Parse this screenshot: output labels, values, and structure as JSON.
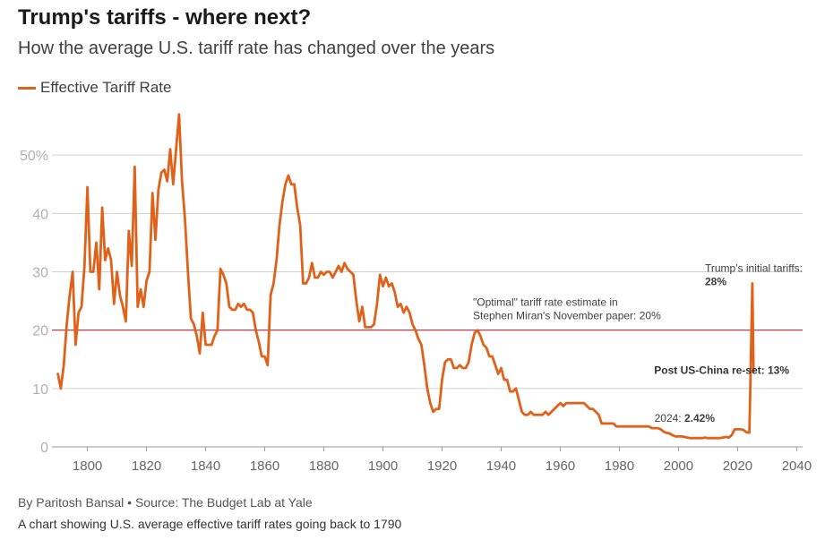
{
  "title": "Trump's tariffs - where next?",
  "subtitle": "How the average U.S. tariff rate has changed over the years",
  "byline": "By Paritosh Bansal • Source: The Budget Lab at Yale",
  "caption": "A chart showing U.S. average effective tariff rates going back to 1790",
  "colors": {
    "series": "#e0621a",
    "reference_line": "#c8102e",
    "grid": "#d0d0d0",
    "axis_text": "#666666"
  },
  "chart_data": {
    "type": "line",
    "title": "Trump's tariffs - where next?",
    "subtitle": "How the average U.S. tariff rate has changed over the years",
    "xlabel": "",
    "ylabel": "",
    "xlim": [
      1788,
      2042
    ],
    "ylim": [
      0,
      60
    ],
    "x_ticks": [
      1800,
      1820,
      1840,
      1860,
      1880,
      1900,
      1920,
      1940,
      1960,
      1980,
      2000,
      2020,
      2040
    ],
    "y_ticks": [
      {
        "value": 0,
        "label": "0"
      },
      {
        "value": 10,
        "label": "10"
      },
      {
        "value": 20,
        "label": "20"
      },
      {
        "value": 30,
        "label": "30"
      },
      {
        "value": 40,
        "label": "40"
      },
      {
        "value": 50,
        "label": "50%"
      }
    ],
    "grid": true,
    "legend_position": "top-left",
    "reference_lines": [
      {
        "y": 20,
        "label_lines": [
          "\"Optimal\" tariff rate estimate in",
          "Stephen Miran's November paper: 20%"
        ]
      }
    ],
    "annotations": [
      {
        "x": 2025,
        "y": 28,
        "label_lines": [
          "Trump's initial tariffs:",
          "28%"
        ],
        "bold_line": 1
      },
      {
        "x": 2025,
        "y": 13,
        "label_lines": [
          "Post US-China re-set: 13%"
        ],
        "bold_line": 0
      },
      {
        "x": 2024,
        "y": 2.42,
        "label_prefix": "2024: ",
        "label_value": "2.42%"
      }
    ],
    "series": [
      {
        "name": "Effective Tariff Rate",
        "color": "#e0621a",
        "points": [
          [
            1790,
            12.5
          ],
          [
            1791,
            10
          ],
          [
            1792,
            14
          ],
          [
            1793,
            21
          ],
          [
            1794,
            26
          ],
          [
            1795,
            30
          ],
          [
            1796,
            17.5
          ],
          [
            1797,
            23
          ],
          [
            1798,
            24
          ],
          [
            1799,
            31
          ],
          [
            1800,
            44.5
          ],
          [
            1801,
            30
          ],
          [
            1802,
            30
          ],
          [
            1803,
            35
          ],
          [
            1804,
            27
          ],
          [
            1805,
            41
          ],
          [
            1806,
            32
          ],
          [
            1807,
            34
          ],
          [
            1808,
            32
          ],
          [
            1809,
            24.5
          ],
          [
            1810,
            30
          ],
          [
            1811,
            26
          ],
          [
            1812,
            24
          ],
          [
            1813,
            21.5
          ],
          [
            1814,
            37
          ],
          [
            1815,
            31
          ],
          [
            1816,
            48
          ],
          [
            1817,
            24
          ],
          [
            1818,
            27
          ],
          [
            1819,
            24
          ],
          [
            1820,
            28.5
          ],
          [
            1821,
            30
          ],
          [
            1822,
            43.5
          ],
          [
            1823,
            35.5
          ],
          [
            1824,
            44
          ],
          [
            1825,
            47
          ],
          [
            1826,
            47.5
          ],
          [
            1827,
            45.5
          ],
          [
            1828,
            51
          ],
          [
            1829,
            45
          ],
          [
            1830,
            51
          ],
          [
            1831,
            57
          ],
          [
            1832,
            45.5
          ],
          [
            1833,
            39
          ],
          [
            1834,
            30
          ],
          [
            1835,
            22
          ],
          [
            1836,
            21
          ],
          [
            1837,
            19
          ],
          [
            1838,
            16
          ],
          [
            1839,
            23
          ],
          [
            1840,
            17.5
          ],
          [
            1841,
            17.5
          ],
          [
            1842,
            17.5
          ],
          [
            1843,
            19
          ],
          [
            1844,
            20
          ],
          [
            1845,
            30.5
          ],
          [
            1846,
            29.5
          ],
          [
            1847,
            28
          ],
          [
            1848,
            24
          ],
          [
            1849,
            23.5
          ],
          [
            1850,
            23.5
          ],
          [
            1851,
            24.5
          ],
          [
            1852,
            24
          ],
          [
            1853,
            24.5
          ],
          [
            1854,
            23.5
          ],
          [
            1855,
            23.5
          ],
          [
            1856,
            23
          ],
          [
            1857,
            20
          ],
          [
            1858,
            18
          ],
          [
            1859,
            15.5
          ],
          [
            1860,
            15.5
          ],
          [
            1861,
            14
          ],
          [
            1862,
            26
          ],
          [
            1863,
            28
          ],
          [
            1864,
            32
          ],
          [
            1865,
            38
          ],
          [
            1866,
            42
          ],
          [
            1867,
            45
          ],
          [
            1868,
            46.5
          ],
          [
            1869,
            45
          ],
          [
            1870,
            45
          ],
          [
            1871,
            41
          ],
          [
            1872,
            38
          ],
          [
            1873,
            28
          ],
          [
            1874,
            28
          ],
          [
            1875,
            29
          ],
          [
            1876,
            31.5
          ],
          [
            1877,
            29
          ],
          [
            1878,
            29
          ],
          [
            1879,
            30
          ],
          [
            1880,
            29.5
          ],
          [
            1881,
            30
          ],
          [
            1882,
            30
          ],
          [
            1883,
            29
          ],
          [
            1884,
            30
          ],
          [
            1885,
            31
          ],
          [
            1886,
            30
          ],
          [
            1887,
            31.5
          ],
          [
            1888,
            30.5
          ],
          [
            1889,
            30
          ],
          [
            1890,
            29.5
          ],
          [
            1891,
            25
          ],
          [
            1892,
            21.5
          ],
          [
            1893,
            24
          ],
          [
            1894,
            20.5
          ],
          [
            1895,
            20.5
          ],
          [
            1896,
            20.5
          ],
          [
            1897,
            21
          ],
          [
            1898,
            24.5
          ],
          [
            1899,
            29.5
          ],
          [
            1900,
            27.5
          ],
          [
            1901,
            29
          ],
          [
            1902,
            27.5
          ],
          [
            1903,
            28
          ],
          [
            1904,
            26.5
          ],
          [
            1905,
            24
          ],
          [
            1906,
            24.5
          ],
          [
            1907,
            23
          ],
          [
            1908,
            24
          ],
          [
            1909,
            23
          ],
          [
            1910,
            21
          ],
          [
            1911,
            20
          ],
          [
            1912,
            18.5
          ],
          [
            1913,
            17.5
          ],
          [
            1914,
            14
          ],
          [
            1915,
            10
          ],
          [
            1916,
            7.5
          ],
          [
            1917,
            6
          ],
          [
            1918,
            6.5
          ],
          [
            1919,
            6.5
          ],
          [
            1920,
            11.5
          ],
          [
            1921,
            14.5
          ],
          [
            1922,
            15
          ],
          [
            1923,
            15
          ],
          [
            1924,
            13.5
          ],
          [
            1925,
            13.5
          ],
          [
            1926,
            14
          ],
          [
            1927,
            13.5
          ],
          [
            1928,
            13.5
          ],
          [
            1929,
            14.5
          ],
          [
            1930,
            17.5
          ],
          [
            1931,
            19.5
          ],
          [
            1932,
            20
          ],
          [
            1933,
            19
          ],
          [
            1934,
            17.5
          ],
          [
            1935,
            17
          ],
          [
            1936,
            15.5
          ],
          [
            1937,
            15.5
          ],
          [
            1938,
            14
          ],
          [
            1939,
            12.5
          ],
          [
            1940,
            13.5
          ],
          [
            1941,
            11.5
          ],
          [
            1942,
            11.5
          ],
          [
            1943,
            9.5
          ],
          [
            1944,
            9.5
          ],
          [
            1945,
            10
          ],
          [
            1946,
            8
          ],
          [
            1947,
            6
          ],
          [
            1948,
            5.5
          ],
          [
            1949,
            5.5
          ],
          [
            1950,
            6
          ],
          [
            1951,
            5.5
          ],
          [
            1952,
            5.5
          ],
          [
            1953,
            5.5
          ],
          [
            1954,
            5.5
          ],
          [
            1955,
            6
          ],
          [
            1956,
            5.5
          ],
          [
            1957,
            6
          ],
          [
            1958,
            6.5
          ],
          [
            1959,
            7
          ],
          [
            1960,
            7.5
          ],
          [
            1961,
            7
          ],
          [
            1962,
            7.5
          ],
          [
            1963,
            7.5
          ],
          [
            1964,
            7.5
          ],
          [
            1965,
            7.5
          ],
          [
            1966,
            7.5
          ],
          [
            1967,
            7.5
          ],
          [
            1968,
            7.5
          ],
          [
            1969,
            7
          ],
          [
            1970,
            6.5
          ],
          [
            1971,
            6.5
          ],
          [
            1972,
            6
          ],
          [
            1973,
            5.5
          ],
          [
            1974,
            4
          ],
          [
            1975,
            4
          ],
          [
            1976,
            4
          ],
          [
            1977,
            4
          ],
          [
            1978,
            4
          ],
          [
            1979,
            3.5
          ],
          [
            1980,
            3.5
          ],
          [
            1981,
            3.5
          ],
          [
            1982,
            3.5
          ],
          [
            1983,
            3.5
          ],
          [
            1984,
            3.5
          ],
          [
            1985,
            3.5
          ],
          [
            1986,
            3.5
          ],
          [
            1987,
            3.5
          ],
          [
            1988,
            3.5
          ],
          [
            1989,
            3.5
          ],
          [
            1990,
            3.5
          ],
          [
            1991,
            3.2
          ],
          [
            1992,
            3.2
          ],
          [
            1993,
            3.2
          ],
          [
            1994,
            3
          ],
          [
            1995,
            2.6
          ],
          [
            1996,
            2.4
          ],
          [
            1997,
            2.3
          ],
          [
            1998,
            2
          ],
          [
            1999,
            1.8
          ],
          [
            2000,
            1.8
          ],
          [
            2001,
            1.8
          ],
          [
            2002,
            1.7
          ],
          [
            2003,
            1.6
          ],
          [
            2004,
            1.5
          ],
          [
            2005,
            1.5
          ],
          [
            2006,
            1.5
          ],
          [
            2007,
            1.5
          ],
          [
            2008,
            1.5
          ],
          [
            2009,
            1.6
          ],
          [
            2010,
            1.5
          ],
          [
            2011,
            1.5
          ],
          [
            2012,
            1.5
          ],
          [
            2013,
            1.5
          ],
          [
            2014,
            1.5
          ],
          [
            2015,
            1.6
          ],
          [
            2016,
            1.7
          ],
          [
            2017,
            1.6
          ],
          [
            2018,
            2
          ],
          [
            2019,
            3
          ],
          [
            2020,
            3
          ],
          [
            2021,
            3
          ],
          [
            2022,
            2.9
          ],
          [
            2023,
            2.5
          ],
          [
            2024,
            2.42
          ],
          [
            2025,
            28
          ],
          [
            2025.4,
            13
          ]
        ]
      }
    ]
  }
}
